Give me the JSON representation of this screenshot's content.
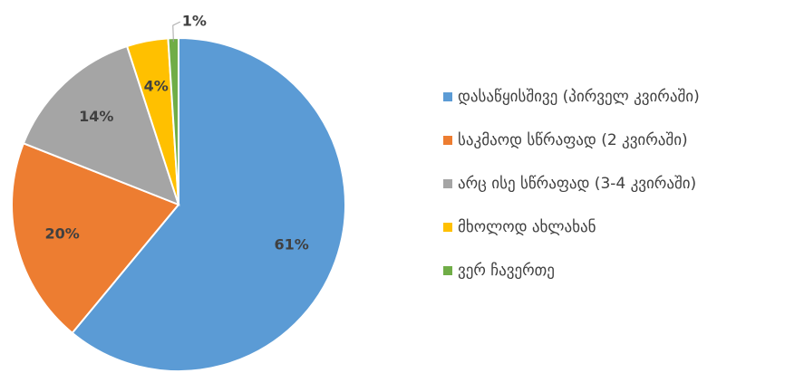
{
  "chart_data": {
    "type": "pie",
    "categories": [
      "დასაწყისშივე (პირველ კვირაში)",
      "საკმაოდ სწრაფად (2 კვირაში)",
      "არც ისე სწრაფად (3-4 კვირაში)",
      "მხოლოდ ახლახან",
      "ვერ ჩავერთე"
    ],
    "values": [
      61,
      20,
      14,
      4,
      1
    ],
    "value_labels": [
      "61%",
      "20%",
      "14%",
      "4%",
      "1%"
    ],
    "colors": [
      "#5b9bd5",
      "#ed7d31",
      "#a5a5a5",
      "#ffc000",
      "#70ad47"
    ],
    "legend": "right"
  }
}
